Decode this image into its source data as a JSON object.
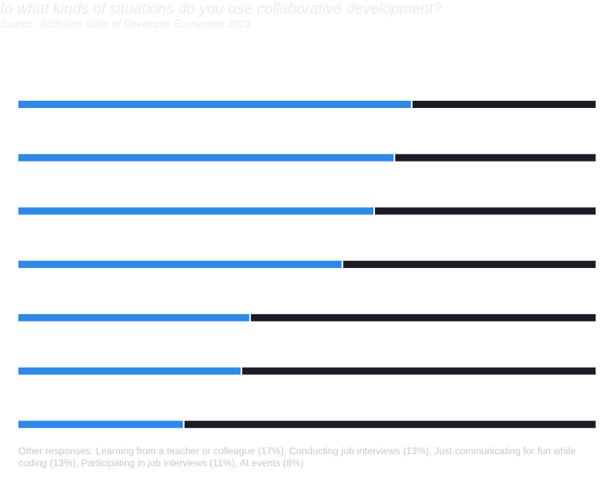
{
  "header": {
    "title": "In what kinds of situations do you use collaborative development?",
    "source": "Source: JetBrains State of Developer Ecosystem 2023"
  },
  "chart_data": {
    "type": "bar",
    "orientation": "horizontal",
    "stacked": true,
    "categories": [
      "",
      "",
      "",
      "",
      "",
      "",
      ""
    ],
    "series": [
      {
        "values": [
          68,
          65,
          61.5,
          56,
          40,
          38.5,
          28.5
        ],
        "color": "#2b88ec"
      },
      {
        "values": [
          32,
          35,
          38.5,
          44,
          60,
          61.5,
          71.5
        ],
        "color": "#1c1d24"
      }
    ],
    "xlim": [
      0,
      100
    ],
    "grid": false,
    "legend": "none"
  },
  "footnote": {
    "text": "Other responses: Learning from a teacher or colleague (17%), Conducting job interviews (13%), Just communicating for fun while coding (13%), Participating in job interviews (11%), At events (8%)"
  }
}
